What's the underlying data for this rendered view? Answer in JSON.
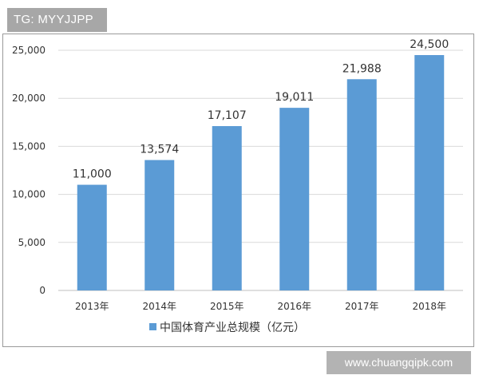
{
  "badge_text": "TG: MYYJJPP",
  "watermark_text": "www.chuangqipk.com",
  "chart_data": {
    "type": "bar",
    "title": "",
    "xlabel": "",
    "ylabel": "",
    "categories": [
      "2013年",
      "2014年",
      "2015年",
      "2016年",
      "2017年",
      "2018年"
    ],
    "series": [
      {
        "name": "中国体育产业总规模（亿元）",
        "values": [
          11000,
          13574,
          17107,
          19011,
          21988,
          24500
        ],
        "color": "#5b9bd5"
      }
    ],
    "data_labels": [
      "11,000",
      "13,574",
      "17,107",
      "19,011",
      "21,988",
      "24,500"
    ],
    "y_ticks": [
      0,
      5000,
      10000,
      15000,
      20000,
      25000
    ],
    "y_tick_labels": [
      "0",
      "5,000",
      "10,000",
      "15,000",
      "20,000",
      "25,000"
    ],
    "ylim": [
      0,
      25000
    ],
    "grid": true,
    "legend_position": "bottom"
  }
}
